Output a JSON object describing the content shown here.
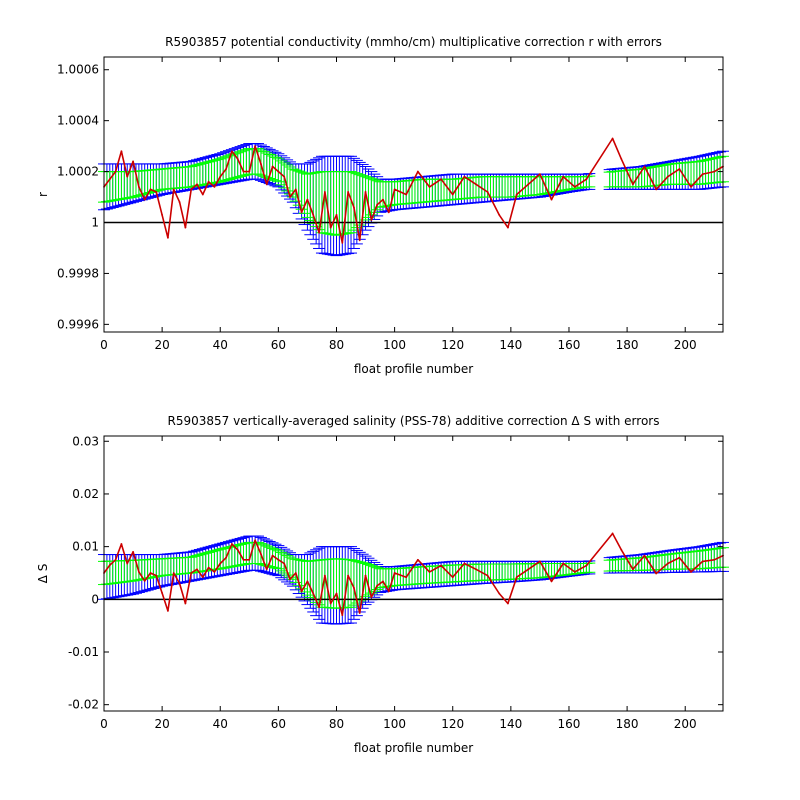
{
  "colors": {
    "background": "#ffffff",
    "axis": "#000000",
    "outer_error": "#0000ff",
    "inner_error": "#00ff00",
    "series": "#cc0000",
    "reference_line": "#000000"
  },
  "chart_data": [
    {
      "type": "line",
      "title": "R5903857 potential conductivity (mmho/cm) multiplicative correction r with errors",
      "xlabel": "float profile number",
      "ylabel": "r",
      "xlim": [
        0,
        213
      ],
      "ylim": [
        0.99957,
        1.00065
      ],
      "xticks": [
        0,
        20,
        40,
        60,
        80,
        100,
        120,
        140,
        160,
        180,
        200
      ],
      "xtick_labels": [
        "0",
        "20",
        "40",
        "60",
        "80",
        "100",
        "120",
        "140",
        "160",
        "180",
        "200"
      ],
      "yticks": [
        0.9996,
        0.9998,
        1.0,
        1.0002,
        1.0004,
        1.0006
      ],
      "ytick_labels": [
        "0.9996",
        "0.9998",
        "1",
        "1.0002",
        "1.0004",
        "1.0006"
      ],
      "reference_line": 1.0,
      "grid": false,
      "series": [
        {
          "kind": "outer_error_band",
          "x": [
            0,
            10,
            20,
            30,
            40,
            50,
            53,
            60,
            65,
            70,
            75,
            80,
            85,
            90,
            95,
            100,
            110,
            120,
            130,
            140,
            150,
            160,
            166,
            175,
            185,
            195,
            205,
            213
          ],
          "upper": [
            1.00023,
            1.00023,
            1.00023,
            1.00024,
            1.00027,
            1.00031,
            1.00031,
            1.00027,
            1.00023,
            1.00023,
            1.00026,
            1.00026,
            1.00026,
            1.00022,
            1.00017,
            1.00017,
            1.00018,
            1.00019,
            1.00019,
            1.00019,
            1.00019,
            1.00019,
            1.00019,
            1.00021,
            1.00022,
            1.00024,
            1.00026,
            1.00028
          ],
          "lower": [
            1.00005,
            1.00008,
            1.00011,
            1.00013,
            1.00015,
            1.00017,
            1.00017,
            1.00014,
            1.00008,
            0.99997,
            0.99988,
            0.99987,
            0.99988,
            0.99997,
            1.00004,
            1.00005,
            1.00006,
            1.00007,
            1.00008,
            1.00009,
            1.0001,
            1.00012,
            1.00013,
            1.00013,
            1.00013,
            1.00013,
            1.00013,
            1.00014
          ]
        },
        {
          "kind": "inner_error_band",
          "x": [
            0,
            10,
            20,
            30,
            40,
            50,
            53,
            60,
            65,
            70,
            75,
            80,
            85,
            90,
            95,
            100,
            110,
            120,
            130,
            140,
            150,
            160,
            166,
            175,
            185,
            195,
            205,
            213
          ],
          "upper": [
            1.0002,
            1.0002,
            1.00021,
            1.00022,
            1.00025,
            1.00029,
            1.00029,
            1.00025,
            1.00021,
            1.00019,
            1.0002,
            1.0002,
            1.0002,
            1.00018,
            1.00016,
            1.00016,
            1.00017,
            1.00017,
            1.00018,
            1.00018,
            1.00018,
            1.00018,
            1.00018,
            1.0002,
            1.00021,
            1.00023,
            1.00024,
            1.00026
          ],
          "lower": [
            1.00008,
            1.0001,
            1.00013,
            1.00014,
            1.00016,
            1.00019,
            1.00019,
            1.00016,
            1.0001,
            1.00002,
            0.99996,
            0.99995,
            0.99996,
            1.00001,
            1.00006,
            1.00007,
            1.00008,
            1.00009,
            1.0001,
            1.0001,
            1.00011,
            1.00013,
            1.00014,
            1.00014,
            1.00014,
            1.00015,
            1.00015,
            1.00016
          ]
        },
        {
          "kind": "line",
          "x": [
            0,
            2,
            4,
            6,
            8,
            10,
            12,
            14,
            16,
            18,
            20,
            22,
            24,
            26,
            28,
            30,
            32,
            34,
            36,
            38,
            40,
            42,
            44,
            46,
            48,
            50,
            52,
            54,
            56,
            58,
            60,
            62,
            64,
            66,
            68,
            70,
            72,
            74,
            76,
            78,
            80,
            82,
            84,
            86,
            88,
            90,
            92,
            94,
            96,
            98,
            100,
            104,
            108,
            112,
            116,
            120,
            124,
            128,
            132,
            136,
            139,
            142,
            146,
            150,
            154,
            158,
            162,
            166,
            175,
            178,
            182,
            186,
            190,
            194,
            198,
            202,
            206,
            210,
            213
          ],
          "y": [
            1.00014,
            1.00017,
            1.0002,
            1.00028,
            1.00018,
            1.00024,
            1.00014,
            1.00009,
            1.00013,
            1.00012,
            1.00003,
            0.99994,
            1.00013,
            1.00008,
            0.99998,
            1.00013,
            1.00015,
            1.00011,
            1.00016,
            1.00014,
            1.00018,
            1.00021,
            1.00028,
            1.00025,
            1.0002,
            1.0002,
            1.0003,
            1.00023,
            1.00015,
            1.00022,
            1.0002,
            1.00018,
            1.0001,
            1.00013,
            1.00004,
            1.00009,
            1.00003,
            0.99996,
            1.00012,
            0.99998,
            1.00003,
            0.99992,
            1.00012,
            1.00006,
            0.99993,
            1.00012,
            1.00001,
            1.00007,
            1.00009,
            1.00004,
            1.00013,
            1.00011,
            1.0002,
            1.00014,
            1.00017,
            1.00011,
            1.00018,
            1.00015,
            1.00012,
            1.00003,
            0.99998,
            1.00011,
            1.00015,
            1.00019,
            1.00009,
            1.00018,
            1.00014,
            1.00017,
            1.00033,
            1.00025,
            1.00015,
            1.00022,
            1.00013,
            1.00018,
            1.00021,
            1.00014,
            1.00019,
            1.0002,
            1.00022
          ]
        }
      ]
    },
    {
      "type": "line",
      "title": "R5903857 vertically-averaged salinity (PSS-78) additive correction Δ S with errors",
      "xlabel": "float profile number",
      "ylabel": "Δ S",
      "xlim": [
        0,
        213
      ],
      "ylim": [
        -0.0212,
        0.031
      ],
      "xticks": [
        0,
        20,
        40,
        60,
        80,
        100,
        120,
        140,
        160,
        180,
        200
      ],
      "xtick_labels": [
        "0",
        "20",
        "40",
        "60",
        "80",
        "100",
        "120",
        "140",
        "160",
        "180",
        "200"
      ],
      "yticks": [
        -0.02,
        -0.01,
        0,
        0.01,
        0.02,
        0.03
      ],
      "ytick_labels": [
        "-0.02",
        "-0.01",
        "0",
        "0.01",
        "0.02",
        "0.03"
      ],
      "reference_line": 0,
      "grid": false,
      "series": [
        {
          "kind": "outer_error_band",
          "x": [
            0,
            10,
            20,
            30,
            40,
            50,
            53,
            60,
            65,
            70,
            75,
            80,
            85,
            90,
            95,
            100,
            110,
            120,
            130,
            140,
            150,
            160,
            166,
            175,
            185,
            195,
            205,
            213
          ],
          "upper": [
            0.0085,
            0.0085,
            0.0085,
            0.009,
            0.0105,
            0.012,
            0.012,
            0.0102,
            0.0085,
            0.0085,
            0.01,
            0.01,
            0.01,
            0.0082,
            0.0062,
            0.0062,
            0.0067,
            0.0072,
            0.0072,
            0.0072,
            0.0072,
            0.0072,
            0.0072,
            0.008,
            0.0085,
            0.0093,
            0.01,
            0.0108
          ],
          "lower": [
            0.0,
            0.001,
            0.0025,
            0.0035,
            0.0045,
            0.0055,
            0.0055,
            0.0045,
            0.0025,
            -0.001,
            -0.0045,
            -0.0047,
            -0.0045,
            -0.001,
            0.0013,
            0.0018,
            0.0022,
            0.0026,
            0.003,
            0.0033,
            0.0037,
            0.0044,
            0.0048,
            0.005,
            0.005,
            0.0051,
            0.0052,
            0.0053
          ]
        },
        {
          "kind": "inner_error_band",
          "x": [
            0,
            10,
            20,
            30,
            40,
            50,
            53,
            60,
            65,
            70,
            75,
            80,
            85,
            90,
            95,
            100,
            110,
            120,
            130,
            140,
            150,
            160,
            166,
            175,
            185,
            195,
            205,
            213
          ],
          "upper": [
            0.0072,
            0.0074,
            0.0077,
            0.008,
            0.0095,
            0.0108,
            0.0108,
            0.0092,
            0.0077,
            0.0072,
            0.0075,
            0.0077,
            0.0075,
            0.0068,
            0.0058,
            0.0058,
            0.0062,
            0.0065,
            0.0067,
            0.0067,
            0.0068,
            0.0068,
            0.0068,
            0.0075,
            0.0079,
            0.0086,
            0.0092,
            0.0098
          ],
          "lower": [
            0.0028,
            0.0035,
            0.0045,
            0.005,
            0.0058,
            0.0068,
            0.0068,
            0.0058,
            0.0038,
            0.0008,
            -0.0015,
            -0.0017,
            -0.0015,
            0.0005,
            0.0022,
            0.0026,
            0.003,
            0.0033,
            0.0036,
            0.0038,
            0.0041,
            0.0047,
            0.0051,
            0.0054,
            0.0055,
            0.0057,
            0.0058,
            0.0061
          ]
        },
        {
          "kind": "line",
          "x": [
            0,
            2,
            4,
            6,
            8,
            10,
            12,
            14,
            16,
            18,
            20,
            22,
            24,
            26,
            28,
            30,
            32,
            34,
            36,
            38,
            40,
            42,
            44,
            46,
            48,
            50,
            52,
            54,
            56,
            58,
            60,
            62,
            64,
            66,
            68,
            70,
            72,
            74,
            76,
            78,
            80,
            82,
            84,
            86,
            88,
            90,
            92,
            94,
            96,
            98,
            100,
            104,
            108,
            112,
            116,
            120,
            124,
            128,
            132,
            136,
            139,
            142,
            146,
            150,
            154,
            158,
            162,
            166,
            175,
            178,
            182,
            186,
            190,
            194,
            198,
            202,
            206,
            210,
            213
          ],
          "y": [
            0.005,
            0.0065,
            0.0075,
            0.0105,
            0.0068,
            0.009,
            0.0052,
            0.0035,
            0.005,
            0.0045,
            0.0012,
            -0.0022,
            0.005,
            0.003,
            -0.0008,
            0.005,
            0.0057,
            0.0042,
            0.006,
            0.0052,
            0.0068,
            0.0079,
            0.0105,
            0.0094,
            0.0075,
            0.0075,
            0.0112,
            0.0086,
            0.0057,
            0.0083,
            0.0075,
            0.0068,
            0.0038,
            0.005,
            0.0015,
            0.0034,
            0.0011,
            -0.0015,
            0.0045,
            -0.0008,
            0.0011,
            -0.003,
            0.0045,
            0.0022,
            -0.0026,
            0.0045,
            0.0004,
            0.0026,
            0.0034,
            0.0015,
            0.005,
            0.0042,
            0.0075,
            0.0052,
            0.0064,
            0.0042,
            0.0068,
            0.0057,
            0.0045,
            0.0011,
            -0.0008,
            0.0042,
            0.0057,
            0.0072,
            0.0034,
            0.0068,
            0.0052,
            0.0064,
            0.0125,
            0.0094,
            0.0057,
            0.0083,
            0.0049,
            0.0068,
            0.0079,
            0.0052,
            0.0072,
            0.0075,
            0.0083
          ]
        }
      ]
    }
  ]
}
